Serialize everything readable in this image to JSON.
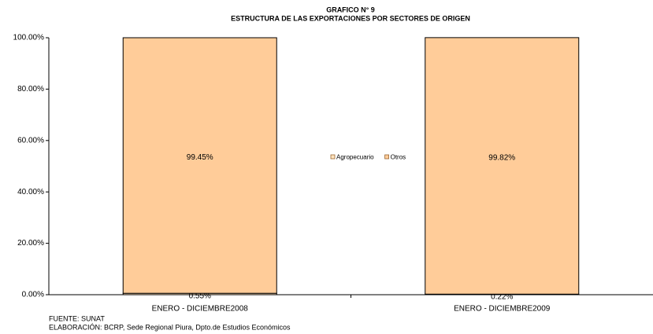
{
  "chart_data": {
    "type": "stacked_bar",
    "title": "GRAFICO N° 9",
    "subtitle": "ESTRUCTURA DE LAS EXPORTACIONES POR SECTORES DE ORIGEN",
    "categories": [
      "ENERO - DICIEMBRE2008",
      "ENERO - DICIEMBRE2009"
    ],
    "series": [
      {
        "name": "Agropecuario",
        "color": "#ffe4bf",
        "values": [
          0.55,
          0.22
        ],
        "value_labels": [
          "0.55%",
          "0.22%"
        ]
      },
      {
        "name": "Otros",
        "color": "#ffcc99",
        "values": [
          99.45,
          99.82
        ],
        "value_labels": [
          "99.45%",
          "99.82%"
        ]
      }
    ],
    "ylim": [
      0,
      100
    ],
    "yticks": [
      {
        "value": 0,
        "label": "0.00%"
      },
      {
        "value": 20,
        "label": "20.00%"
      },
      {
        "value": 40,
        "label": "40.00%"
      },
      {
        "value": 60,
        "label": "60.00%"
      },
      {
        "value": 80,
        "label": "80.00%"
      },
      {
        "value": 100,
        "label": "100.00%"
      }
    ],
    "grid": false,
    "legend": "center",
    "footnotes": [
      "FUENTE: SUNAT",
      "ELABORACIÓN: BCRP, Sede Regional Piura,  Dpto.de Estudios Económicos"
    ]
  }
}
